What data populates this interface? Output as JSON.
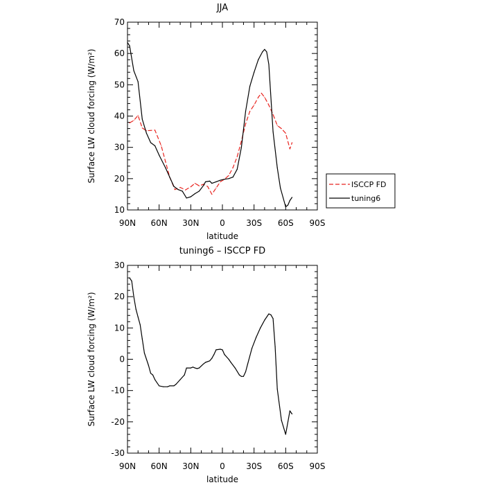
{
  "chart_data": [
    {
      "type": "line",
      "title": "JJA",
      "xlabel": "latitude",
      "ylabel": "Surface LW cloud forcing (W/m²)",
      "x_categories": [
        "90N",
        "60N",
        "30N",
        "0",
        "30S",
        "60S",
        "90S"
      ],
      "x_tick_values": [
        90,
        60,
        30,
        0,
        -30,
        -60,
        -90
      ],
      "xlim": [
        90,
        -90
      ],
      "ylim": [
        10,
        70
      ],
      "y_ticks": [
        10,
        20,
        30,
        40,
        50,
        60,
        70
      ],
      "grid": false,
      "legend_position": "right",
      "series": [
        {
          "name": "ISCCP FD",
          "color": "#e8221d",
          "style": "dashed",
          "points": [
            [
              88,
              37.8
            ],
            [
              84,
              38.6
            ],
            [
              80,
              40.2
            ],
            [
              76,
              36.2
            ],
            [
              72,
              35.3
            ],
            [
              64,
              35.5
            ],
            [
              58,
              30.5
            ],
            [
              54,
              25.5
            ],
            [
              50,
              20.5
            ],
            [
              45,
              16.5
            ],
            [
              40,
              17.2
            ],
            [
              35,
              16.4
            ],
            [
              30,
              17.4
            ],
            [
              26,
              18.5
            ],
            [
              22,
              17.7
            ],
            [
              18,
              18.2
            ],
            [
              14,
              17.5
            ],
            [
              10,
              15.0
            ],
            [
              6,
              17.0
            ],
            [
              2,
              19.0
            ],
            [
              -2,
              19.8
            ],
            [
              -6,
              21.0
            ],
            [
              -10,
              23.5
            ],
            [
              -14,
              27.0
            ],
            [
              -18,
              32.0
            ],
            [
              -22,
              37.5
            ],
            [
              -26,
              41.5
            ],
            [
              -30,
              43.5
            ],
            [
              -34,
              46.0
            ],
            [
              -37,
              47.3
            ],
            [
              -40,
              46.0
            ],
            [
              -44,
              43.5
            ],
            [
              -48,
              40.5
            ],
            [
              -52,
              37.0
            ],
            [
              -56,
              36.0
            ],
            [
              -60,
              34.5
            ],
            [
              -64,
              29.5
            ],
            [
              -66,
              31.5
            ]
          ]
        },
        {
          "name": "tuning6",
          "color": "#000000",
          "style": "solid",
          "points": [
            [
              90,
              63.5
            ],
            [
              88,
              62.5
            ],
            [
              84,
              54.5
            ],
            [
              80,
              51.0
            ],
            [
              76,
              39.0
            ],
            [
              72,
              34.5
            ],
            [
              68,
              31.5
            ],
            [
              64,
              30.5
            ],
            [
              60,
              27.5
            ],
            [
              54,
              23.5
            ],
            [
              50,
              20.5
            ],
            [
              46,
              17.5
            ],
            [
              42,
              16.5
            ],
            [
              38,
              16.0
            ],
            [
              34,
              13.8
            ],
            [
              30,
              14.2
            ],
            [
              26,
              15.2
            ],
            [
              22,
              16.0
            ],
            [
              18,
              17.8
            ],
            [
              16,
              19.0
            ],
            [
              12,
              19.2
            ],
            [
              10,
              18.5
            ],
            [
              6,
              19.0
            ],
            [
              2,
              19.5
            ],
            [
              -2,
              19.8
            ],
            [
              -6,
              20.0
            ],
            [
              -10,
              20.5
            ],
            [
              -14,
              23.0
            ],
            [
              -18,
              30.0
            ],
            [
              -22,
              41.5
            ],
            [
              -26,
              49.5
            ],
            [
              -30,
              54.0
            ],
            [
              -34,
              58.0
            ],
            [
              -38,
              60.5
            ],
            [
              -40,
              61.3
            ],
            [
              -42,
              60.5
            ],
            [
              -44,
              56.5
            ],
            [
              -48,
              35.0
            ],
            [
              -52,
              23.5
            ],
            [
              -55,
              17.0
            ],
            [
              -60,
              11.0
            ],
            [
              -62,
              11.5
            ],
            [
              -64,
              13.0
            ],
            [
              -66,
              14.0
            ]
          ]
        }
      ]
    },
    {
      "type": "line",
      "title": "tuning6 – ISCCP FD",
      "xlabel": "latitude",
      "ylabel": "Surface LW cloud forcing (W/m²)",
      "x_categories": [
        "90N",
        "60N",
        "30N",
        "0",
        "30S",
        "60S",
        "90S"
      ],
      "x_tick_values": [
        90,
        60,
        30,
        0,
        -30,
        -60,
        -90
      ],
      "xlim": [
        90,
        -90
      ],
      "ylim": [
        -30,
        30
      ],
      "y_ticks": [
        -30,
        -20,
        -10,
        0,
        10,
        20,
        30
      ],
      "grid": false,
      "series": [
        {
          "color": "#000000",
          "style": "solid",
          "points": [
            [
              88,
              26.0
            ],
            [
              86,
              25.0
            ],
            [
              84,
              20.0
            ],
            [
              82,
              16.0
            ],
            [
              80,
              13.5
            ],
            [
              78,
              11.0
            ],
            [
              76,
              6.5
            ],
            [
              74,
              2.0
            ],
            [
              72,
              0.0
            ],
            [
              70,
              -2.0
            ],
            [
              68,
              -4.5
            ],
            [
              66,
              -5.0
            ],
            [
              64,
              -6.5
            ],
            [
              60,
              -8.5
            ],
            [
              56,
              -8.8
            ],
            [
              52,
              -8.8
            ],
            [
              50,
              -8.5
            ],
            [
              46,
              -8.5
            ],
            [
              44,
              -8.0
            ],
            [
              40,
              -6.5
            ],
            [
              36,
              -5.0
            ],
            [
              34,
              -2.8
            ],
            [
              30,
              -2.8
            ],
            [
              28,
              -2.5
            ],
            [
              26,
              -2.8
            ],
            [
              24,
              -3.0
            ],
            [
              22,
              -2.8
            ],
            [
              18,
              -1.5
            ],
            [
              16,
              -1.0
            ],
            [
              12,
              -0.5
            ],
            [
              10,
              0.3
            ],
            [
              8,
              1.5
            ],
            [
              6,
              3.0
            ],
            [
              2,
              3.2
            ],
            [
              0,
              3.0
            ],
            [
              -2,
              1.5
            ],
            [
              -6,
              0.0
            ],
            [
              -8,
              -1.0
            ],
            [
              -12,
              -2.8
            ],
            [
              -16,
              -5.0
            ],
            [
              -18,
              -5.5
            ],
            [
              -20,
              -5.5
            ],
            [
              -22,
              -4.0
            ],
            [
              -24,
              -1.5
            ],
            [
              -28,
              3.5
            ],
            [
              -32,
              7.0
            ],
            [
              -36,
              10.0
            ],
            [
              -40,
              12.5
            ],
            [
              -44,
              14.5
            ],
            [
              -46,
              14.2
            ],
            [
              -48,
              13.0
            ],
            [
              -50,
              4.0
            ],
            [
              -52,
              -9.5
            ],
            [
              -56,
              -19.5
            ],
            [
              -60,
              -24.0
            ],
            [
              -64,
              -16.5
            ],
            [
              -66,
              -17.5
            ]
          ]
        }
      ]
    }
  ]
}
